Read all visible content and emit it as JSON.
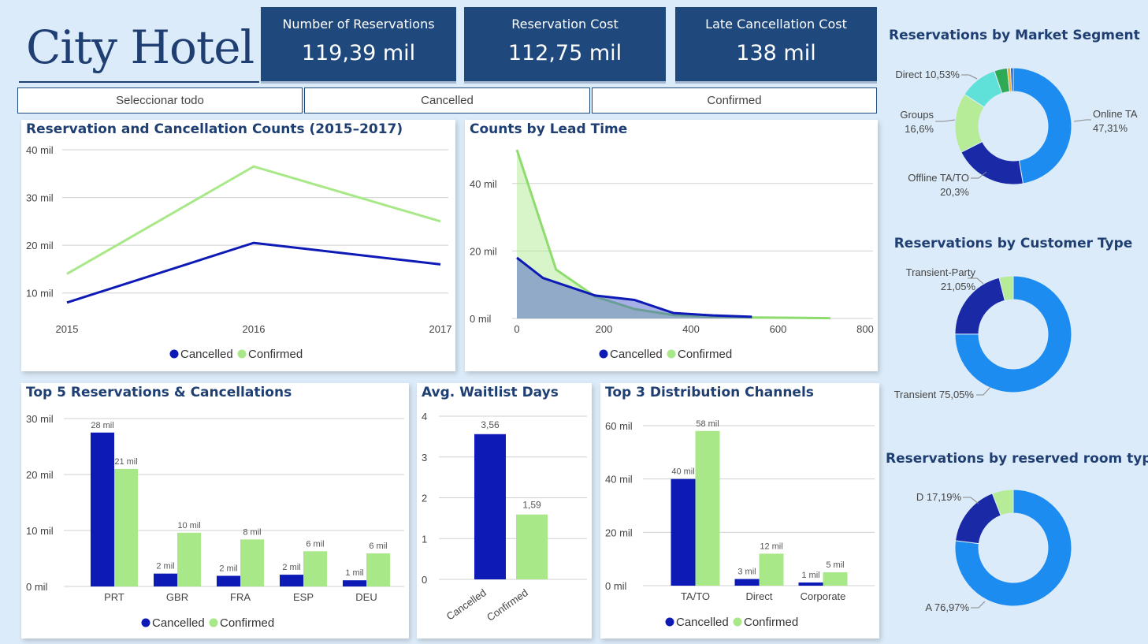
{
  "title": "City Hotel",
  "kpis": [
    {
      "label": "Number of Reservations",
      "value": "119,39 mil"
    },
    {
      "label": "Reservation Cost",
      "value": "112,75 mil"
    },
    {
      "label": "Late Cancellation Cost",
      "value": "138 mil"
    }
  ],
  "slicer": {
    "all": "Seleccionar todo",
    "cancelled": "Cancelled",
    "confirmed": "Confirmed"
  },
  "colors": {
    "cancelled": "#0d1ab5",
    "confirmed": "#a8e888",
    "kpi_bg": "#1f497d",
    "title": "#1f3f72"
  },
  "legend": {
    "cancelled": "Cancelled",
    "confirmed": "Confirmed"
  },
  "chart_data": [
    {
      "id": "trend",
      "type": "line",
      "title": "Reservation and Cancellation Counts (2015–2017)",
      "categories": [
        "2015",
        "2016",
        "2017"
      ],
      "y_ticks": [
        {
          "v": 10000,
          "label": "10 mil"
        },
        {
          "v": 20000,
          "label": "20 mil"
        },
        {
          "v": 30000,
          "label": "30 mil"
        },
        {
          "v": 40000,
          "label": "40 mil"
        }
      ],
      "ylim": [
        5000,
        40000
      ],
      "series": [
        {
          "name": "Cancelled",
          "values": [
            8000,
            20500,
            16000
          ]
        },
        {
          "name": "Confirmed",
          "values": [
            14000,
            36500,
            25000
          ]
        }
      ],
      "legend_position": "bottom"
    },
    {
      "id": "leadtime",
      "type": "area",
      "title": "Counts by Lead Time",
      "x_ticks": [
        0,
        200,
        400,
        600,
        800
      ],
      "xlim": [
        0,
        800
      ],
      "y_ticks": [
        {
          "v": 0,
          "label": "0 mil"
        },
        {
          "v": 20000,
          "label": "20 mil"
        },
        {
          "v": 40000,
          "label": "40 mil"
        }
      ],
      "ylim": [
        0,
        50000
      ],
      "series": [
        {
          "name": "Cancelled",
          "x": [
            0,
            60,
            180,
            270,
            360,
            450,
            540
          ],
          "values": [
            18000,
            12000,
            6800,
            5500,
            1600,
            900,
            500
          ]
        },
        {
          "name": "Confirmed",
          "x": [
            0,
            90,
            180,
            270,
            360,
            450,
            540,
            630,
            720
          ],
          "values": [
            50000,
            14500,
            6500,
            2800,
            1000,
            500,
            300,
            200,
            100
          ]
        }
      ],
      "legend_position": "bottom"
    },
    {
      "id": "top5",
      "type": "bar",
      "title": "Top 5 Reservations & Cancellations",
      "categories": [
        "PRT",
        "GBR",
        "FRA",
        "ESP",
        "DEU"
      ],
      "y_ticks": [
        {
          "v": 0,
          "label": "0 mil"
        },
        {
          "v": 10000,
          "label": "10 mil"
        },
        {
          "v": 20000,
          "label": "20 mil"
        },
        {
          "v": 30000,
          "label": "30 mil"
        }
      ],
      "ylim": [
        0,
        30000
      ],
      "series": [
        {
          "name": "Cancelled",
          "values": [
            27500,
            2300,
            1900,
            2100,
            1100
          ],
          "labels": [
            "28 mil",
            "2 mil",
            "2 mil",
            "2 mil",
            "1 mil"
          ]
        },
        {
          "name": "Confirmed",
          "values": [
            21000,
            9600,
            8400,
            6300,
            5900
          ],
          "labels": [
            "21 mil",
            "10 mil",
            "8 mil",
            "6 mil",
            "6 mil"
          ]
        }
      ],
      "legend_position": "bottom"
    },
    {
      "id": "waitlist",
      "type": "bar",
      "title": "Avg. Waitlist Days",
      "categories": [
        "Cancelled",
        "Confirmed"
      ],
      "values": [
        3.56,
        1.59
      ],
      "labels": [
        "3,56",
        "1,59"
      ],
      "y_ticks": [
        {
          "v": 0,
          "label": "0"
        },
        {
          "v": 1,
          "label": "1"
        },
        {
          "v": 2,
          "label": "2"
        },
        {
          "v": 3,
          "label": "3"
        },
        {
          "v": 4,
          "label": "4"
        }
      ],
      "ylim": [
        0,
        4
      ]
    },
    {
      "id": "channels",
      "type": "bar",
      "title": "Top 3 Distribution Channels",
      "categories": [
        "TA/TO",
        "Direct",
        "Corporate"
      ],
      "y_ticks": [
        {
          "v": 0,
          "label": "0 mil"
        },
        {
          "v": 20000,
          "label": "20 mil"
        },
        {
          "v": 40000,
          "label": "40 mil"
        },
        {
          "v": 60000,
          "label": "60 mil"
        }
      ],
      "ylim": [
        0,
        60000
      ],
      "series": [
        {
          "name": "Cancelled",
          "values": [
            40000,
            2500,
            1200
          ],
          "labels": [
            "40 mil",
            "3 mil",
            "1 mil"
          ]
        },
        {
          "name": "Confirmed",
          "values": [
            58000,
            12000,
            5000
          ],
          "labels": [
            "58 mil",
            "12 mil",
            "5 mil"
          ]
        }
      ],
      "legend_position": "bottom"
    },
    {
      "id": "segment",
      "type": "pie",
      "title": "Reservations by Market Segment",
      "slices": [
        {
          "name": "Online TA",
          "value": 47.31,
          "label": "Online TA 47,31%",
          "color": "#1c8cf0"
        },
        {
          "name": "Offline TA/TO",
          "value": 20.3,
          "label": "Offline TA/TO 20,3%",
          "color": "#1a2aa6"
        },
        {
          "name": "Groups",
          "value": 16.6,
          "label": "Groups 16,6%",
          "color": "#b6ec98"
        },
        {
          "name": "Direct",
          "value": 10.53,
          "label": "Direct 10,53%",
          "color": "#5fe0d8"
        },
        {
          "name": "Other1",
          "value": 3.6,
          "label": "",
          "color": "#2eaa55"
        },
        {
          "name": "Other2",
          "value": 0.9,
          "label": "",
          "color": "#f0b030"
        },
        {
          "name": "Other3",
          "value": 0.76,
          "label": "",
          "color": "#2060c0"
        }
      ]
    },
    {
      "id": "customer",
      "type": "pie",
      "title": "Reservations by Customer Type",
      "slices": [
        {
          "name": "Transient",
          "value": 75.05,
          "label": "Transient 75,05%",
          "color": "#1c8cf0"
        },
        {
          "name": "Transient-Party",
          "value": 21.05,
          "label": "Transient-Party 21,05%",
          "color": "#1a2aa6"
        },
        {
          "name": "Other",
          "value": 3.9,
          "label": "",
          "color": "#b6ec98"
        }
      ]
    },
    {
      "id": "roomtype",
      "type": "pie",
      "title": "Reservations by reserved room type",
      "slices": [
        {
          "name": "A",
          "value": 76.97,
          "label": "A 76,97%",
          "color": "#1c8cf0"
        },
        {
          "name": "D",
          "value": 17.19,
          "label": "D 17,19%",
          "color": "#1a2aa6"
        },
        {
          "name": "Other",
          "value": 5.84,
          "label": "",
          "color": "#b6ec98"
        }
      ]
    }
  ]
}
